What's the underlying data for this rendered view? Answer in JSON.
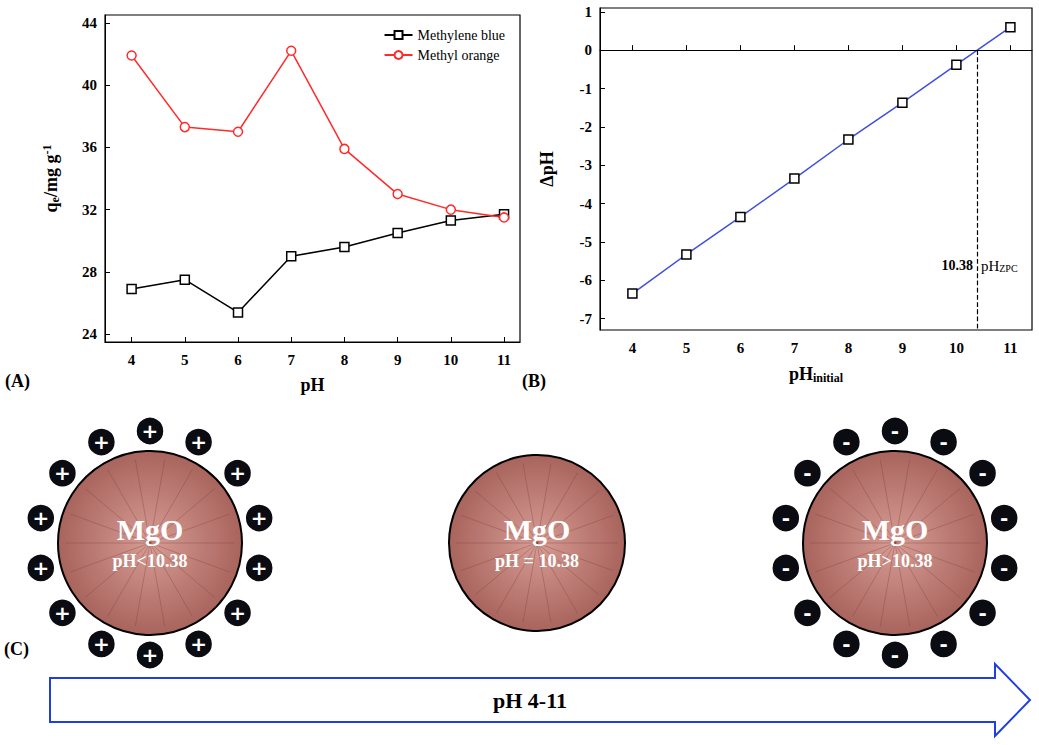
{
  "chart_data": [
    {
      "panel": "(A)",
      "type": "line",
      "xlabel": [
        {
          "text": "pH"
        }
      ],
      "ylabel": [
        {
          "text": "q"
        },
        {
          "sub": "e"
        },
        {
          "text": "/mg g"
        },
        {
          "sup": "-1"
        }
      ],
      "x": [
        4,
        5,
        6,
        7,
        8,
        9,
        10,
        11
      ],
      "series": [
        {
          "name": "Methylene blue",
          "color": "#000000",
          "marker": "square",
          "values": [
            26.9,
            27.5,
            25.4,
            29.0,
            29.6,
            30.5,
            31.3,
            31.7
          ]
        },
        {
          "name": "Methyl orange",
          "color": "#ff2a2a",
          "marker": "circle",
          "values": [
            41.9,
            37.3,
            37.0,
            42.2,
            35.9,
            33.0,
            32.0,
            31.5
          ]
        }
      ],
      "xlim": [
        3.5,
        11.3
      ],
      "xticks": [
        4,
        5,
        6,
        7,
        8,
        9,
        10,
        11
      ],
      "ylim": [
        23.5,
        44.5
      ],
      "yticks": [
        24,
        28,
        32,
        36,
        40,
        44
      ],
      "grid": false,
      "legend": "upper right"
    },
    {
      "panel": "(B)",
      "type": "line",
      "xlabel": [
        {
          "text": "pH"
        },
        {
          "sub": "initial"
        }
      ],
      "ylabel": [
        {
          "text": "ΔpH"
        }
      ],
      "x": [
        4,
        5,
        6,
        7,
        8,
        9,
        10,
        11
      ],
      "series": [
        {
          "color": "#3f4fe0",
          "marker": "square",
          "values": [
            -6.35,
            -5.33,
            -4.35,
            -3.35,
            -2.33,
            -1.37,
            -0.38,
            0.6
          ]
        }
      ],
      "xlim": [
        3.4,
        11.4
      ],
      "xticks": [
        4,
        5,
        6,
        7,
        8,
        9,
        10,
        11
      ],
      "ylim": [
        -7.3,
        1.1
      ],
      "yticks": [
        -7,
        -6,
        -5,
        -4,
        -3,
        -2,
        -1,
        0,
        1
      ],
      "grid": false,
      "annotations": [
        {
          "x": 10.38,
          "y": 0,
          "line_style": "dashed",
          "label": "10.38",
          "text": [
            {
              "text": "pH"
            },
            {
              "sub": "ZPC"
            }
          ]
        }
      ]
    }
  ],
  "diagram": {
    "panel": "(C)",
    "particles": [
      {
        "label": "MgO",
        "condition": "pH<10.38",
        "charge": "+",
        "charge_count": 14
      },
      {
        "label": "MgO",
        "condition": "pH = 10.38"
      },
      {
        "label": "MgO",
        "condition": "pH>10.38",
        "charge": "-",
        "charge_count": 14
      }
    ],
    "arrow": {
      "label": "pH 4-11"
    }
  }
}
